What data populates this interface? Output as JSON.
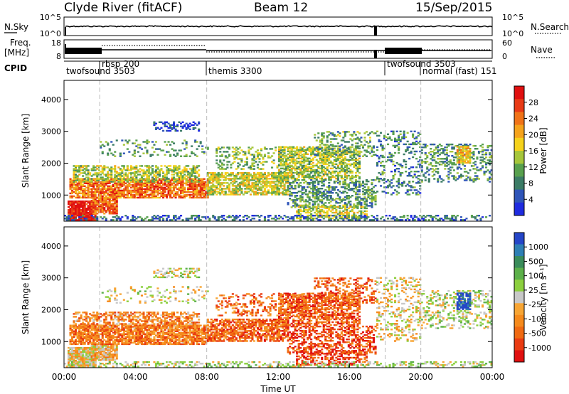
{
  "header": {
    "station": "Clyde River (fitACF)",
    "beam": "Beam 12",
    "date": "15/Sep/2015"
  },
  "panels": {
    "nsky_label": "N.Sky",
    "nsearch_label": "N.Search",
    "freq_label_line1": "Freq.",
    "freq_label_line2": "[MHz]",
    "nave_label": "Nave",
    "cpid_label": "CPID",
    "nsky_ticks": [
      "10^5",
      "10^0"
    ],
    "nsearch_ticks": [
      "10^5",
      "10^0"
    ],
    "freq_ticks": [
      "18",
      "8"
    ],
    "nave_ticks": [
      "60",
      "0"
    ]
  },
  "cpid_segments": [
    {
      "label": "twofsound 3503",
      "start": 0.0,
      "end": 2.0
    },
    {
      "label": "rbsp 200",
      "start": 2.0,
      "end": 8.0
    },
    {
      "label": "themis 3300",
      "start": 8.0,
      "end": 18.0
    },
    {
      "label": "twofsound 3503",
      "start": 18.0,
      "end": 20.0
    },
    {
      "label": "normal (fast) 151",
      "start": 20.0,
      "end": 24.0
    }
  ],
  "chart_data": [
    {
      "type": "heatmap",
      "name": "power",
      "ylabel": "Slant Range [km]",
      "xlabel": "",
      "xlim": [
        0,
        24
      ],
      "ylim": [
        180,
        4600
      ],
      "yticks": [
        "1000",
        "2000",
        "3000",
        "4000"
      ],
      "colorbar": {
        "label": "Power [dB]",
        "ticks": [
          "4",
          "8",
          "12",
          "16",
          "20",
          "24",
          "28"
        ],
        "colors": [
          "#1f2be0",
          "#2f55b8",
          "#3c7c66",
          "#58a04e",
          "#a6c63a",
          "#f5d21c",
          "#f5a31c",
          "#f07318",
          "#e83a16",
          "#e01010"
        ]
      }
    },
    {
      "type": "heatmap",
      "name": "velocity",
      "ylabel": "Slant Range [km]",
      "xlabel": "Time UT",
      "xlim": [
        0,
        24
      ],
      "ylim": [
        180,
        4600
      ],
      "yticks": [
        "1000",
        "2000",
        "3000",
        "4000"
      ],
      "xticks": [
        "00:00",
        "04:00",
        "08:00",
        "12:00",
        "16:00",
        "20:00",
        "00:00"
      ],
      "colorbar": {
        "label": "Velocity [m s⁻¹]",
        "ticks": [
          "1000",
          "500",
          "100",
          "25",
          "-25",
          "-100",
          "-500",
          "-1000"
        ],
        "colors": [
          "#2546c8",
          "#2e7fb4",
          "#3a8c5a",
          "#5cb04a",
          "#8ccf3e",
          "#c8c8c8",
          "#f7a534",
          "#f58a1c",
          "#f06a12",
          "#e93b12",
          "#e01010"
        ]
      }
    }
  ],
  "colors": {
    "ground_scatter": "#9a9a9a",
    "grid_dash": "#bbbbbb"
  }
}
